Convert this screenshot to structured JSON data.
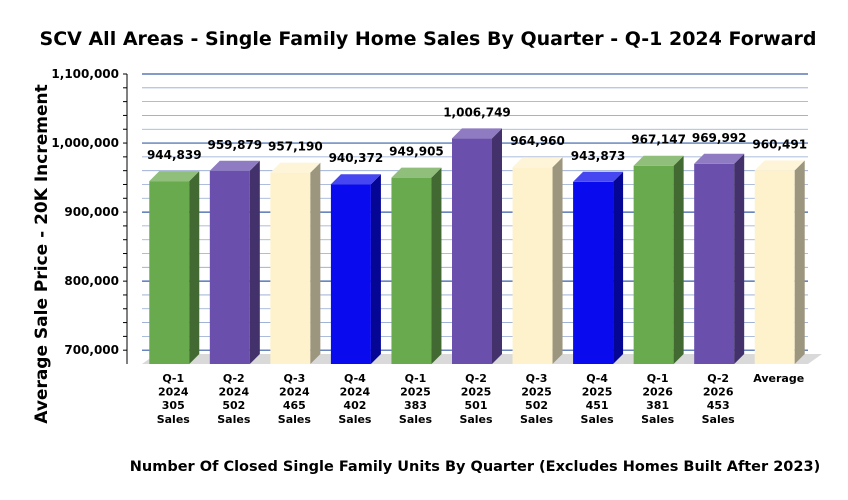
{
  "chart_data": {
    "type": "bar",
    "title": "SCV All Areas - Single Family Home Sales By Quarter - Q-1 2024 Forward",
    "ylabel": "Average Sale Price - 20K Increment",
    "xlabel": "Number Of Closed Single Family Units By Quarter (Excludes Homes Built After 2023)",
    "ylim": [
      680000,
      1100000
    ],
    "y_ticks": [
      {
        "value": 700000,
        "label": "700,000"
      },
      {
        "value": 800000,
        "label": "800,000"
      },
      {
        "value": 900000,
        "label": "900,000"
      },
      {
        "value": 1000000,
        "label": "1,000,000"
      },
      {
        "value": 1100000,
        "label": "1,100,000"
      }
    ],
    "minor_gridline_step": 20000,
    "grid": true,
    "categories": [
      {
        "lines": [
          "Q-1",
          "2024",
          "305",
          "Sales"
        ]
      },
      {
        "lines": [
          "Q-2",
          "2024",
          "502",
          "Sales"
        ]
      },
      {
        "lines": [
          "Q-3",
          "2024",
          "465",
          "Sales"
        ]
      },
      {
        "lines": [
          "Q-4",
          "2024",
          "402",
          "Sales"
        ]
      },
      {
        "lines": [
          "Q-1",
          "2025",
          "383",
          "Sales"
        ]
      },
      {
        "lines": [
          "Q-2",
          "2025",
          "501",
          "Sales"
        ]
      },
      {
        "lines": [
          "Q-3",
          "2025",
          "502",
          "Sales"
        ]
      },
      {
        "lines": [
          "Q-4",
          "2025",
          "451",
          "Sales"
        ]
      },
      {
        "lines": [
          "Q-1",
          "2026",
          "381",
          "Sales"
        ]
      },
      {
        "lines": [
          "Q-2",
          "2026",
          "453",
          "Sales"
        ]
      },
      {
        "lines": [
          "Average"
        ]
      }
    ],
    "values": [
      944839,
      959879,
      957190,
      940372,
      949905,
      1006749,
      964960,
      943873,
      967147,
      969992,
      960491
    ],
    "value_labels": [
      "944,839",
      "959,879",
      "957,190",
      "940,372",
      "949,905",
      "1,006,749",
      "964,960",
      "943,873",
      "967,147",
      "969,992",
      "960,491"
    ],
    "bar_colors": [
      "#6aaa4f",
      "#6a4fad",
      "#fdf2cc",
      "#0a0aee",
      "#6aaa4f",
      "#6a4fad",
      "#fdf2cc",
      "#0a0aee",
      "#6aaa4f",
      "#6a4fad",
      "#fdf2cc"
    ],
    "colors": {
      "green": "#6aaa4f",
      "purple": "#6a4fad",
      "cream": "#fdf2cc",
      "blue": "#0a0aee",
      "gridline": "#3a5fa8",
      "floor": "#d9d9d9"
    }
  }
}
